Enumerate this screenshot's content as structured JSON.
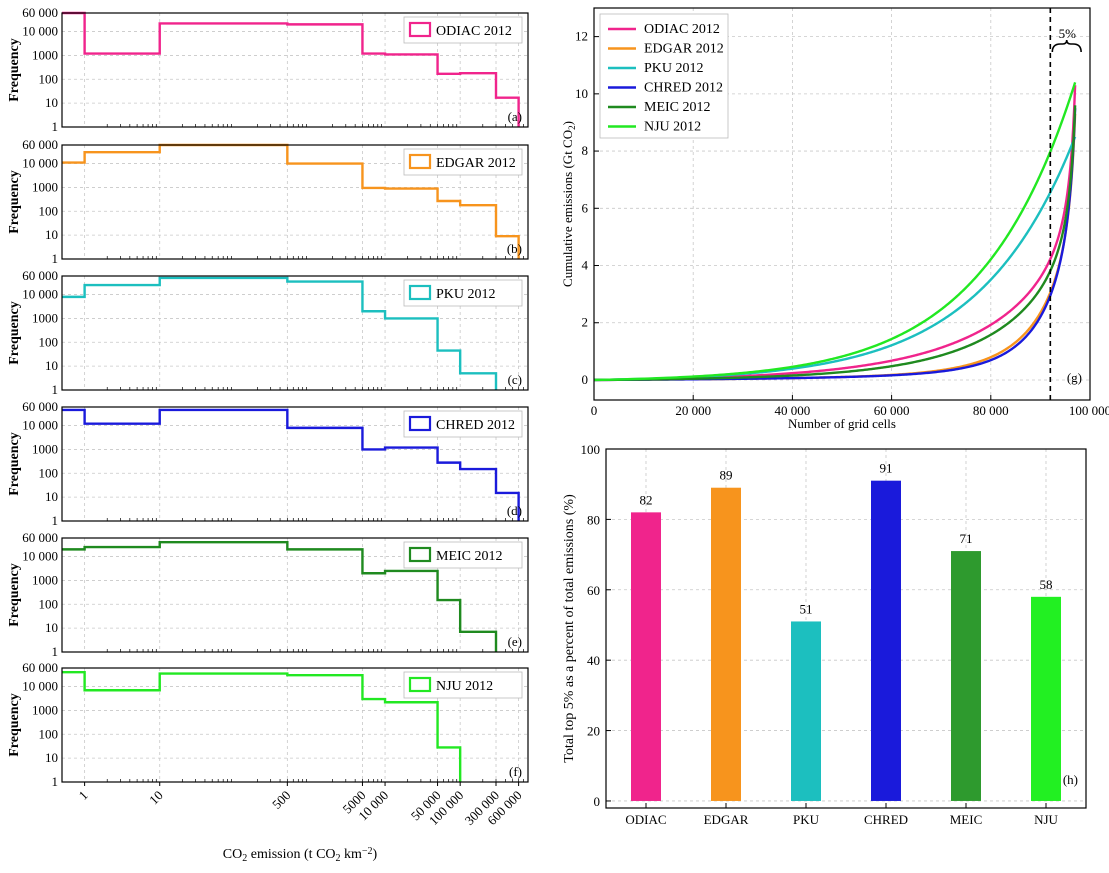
{
  "chart_data": [
    {
      "type": "histogram-step",
      "panels": [
        {
          "id": "a",
          "label": "(a)",
          "series": "ODIAC 2012",
          "color": "#f0248c",
          "edges": [
            0.5,
            1,
            10,
            500,
            5000,
            10000,
            50000,
            100000,
            300000,
            600000
          ],
          "values": [
            60000,
            1200,
            22000,
            20000,
            1200,
            1100,
            170,
            180,
            17
          ]
        },
        {
          "id": "b",
          "label": "(b)",
          "series": "EDGAR 2012",
          "color": "#f7941d",
          "edges": [
            0.5,
            1,
            10,
            500,
            5000,
            10000,
            50000,
            100000,
            300000,
            600000
          ],
          "values": [
            11000,
            30000,
            60000,
            10000,
            950,
            900,
            270,
            180,
            9
          ]
        },
        {
          "id": "c",
          "label": "(c)",
          "series": "PKU 2012",
          "color": "#1cbfbf",
          "edges": [
            0.5,
            1,
            10,
            500,
            5000,
            10000,
            50000,
            100000,
            300000
          ],
          "values": [
            8000,
            25000,
            50000,
            35000,
            2000,
            1000,
            45,
            5
          ]
        },
        {
          "id": "d",
          "label": "(d)",
          "series": "CHRED 2012",
          "color": "#1a1adb",
          "edges": [
            0.5,
            1,
            10,
            500,
            5000,
            10000,
            50000,
            100000,
            300000,
            600000
          ],
          "values": [
            45000,
            12000,
            45000,
            8000,
            1000,
            1200,
            280,
            150,
            15
          ]
        },
        {
          "id": "e",
          "label": "(e)",
          "series": "MEIC 2012",
          "color": "#1f8a1f",
          "edges": [
            0.5,
            1,
            10,
            500,
            5000,
            10000,
            50000,
            100000,
            300000
          ],
          "values": [
            20000,
            25000,
            40000,
            20000,
            2000,
            2500,
            150,
            7
          ]
        },
        {
          "id": "f",
          "label": "(f)",
          "series": "NJU 2012",
          "color": "#22e822",
          "edges": [
            0.5,
            1,
            10,
            500,
            5000,
            10000,
            50000,
            100000
          ],
          "values": [
            40000,
            7000,
            35000,
            30000,
            3000,
            2200,
            28
          ]
        }
      ],
      "x_scale": "log",
      "xlim": [
        0.5,
        800000
      ],
      "y_scale": "log",
      "ylim": [
        1,
        60000
      ],
      "y_ticks": [
        "60 000",
        "10 000",
        "1000",
        "100",
        "10",
        "1"
      ],
      "y_tick_values": [
        60000,
        10000,
        1000,
        100,
        10,
        1
      ],
      "x_ticks": [
        "1",
        "10",
        "500",
        "5000",
        "10 000",
        "50 000",
        "100 000",
        "300 000",
        "600 000"
      ],
      "x_tick_values": [
        1,
        10,
        500,
        5000,
        10000,
        50000,
        100000,
        300000,
        600000
      ],
      "ylabel": "Frequency",
      "xlabel": "emission (t CO km )",
      "xlabel_prefix": "CO",
      "xlabel_sub1": "2",
      "xlabel_sub2": "2",
      "xlabel_sup": "−2",
      "legend": "top-right",
      "grid": true
    },
    {
      "type": "line",
      "label": "(g)",
      "xlabel": "Number of grid cells",
      "ylabel": "Cumulative emissions (Gt CO )",
      "ylabel_sub": "2",
      "xlim": [
        0,
        100000
      ],
      "ylim": [
        -0.7,
        13
      ],
      "x_ticks": [
        "0",
        "20 000",
        "40 000",
        "60 000",
        "80 000",
        "100 000"
      ],
      "x_tick_values": [
        0,
        20000,
        40000,
        60000,
        80000,
        100000
      ],
      "y_ticks": [
        "0",
        "2",
        "4",
        "6",
        "8",
        "10",
        "12"
      ],
      "y_tick_values": [
        0,
        2,
        4,
        6,
        8,
        10,
        12
      ],
      "n_total": 97000,
      "threshold_x": 92000,
      "threshold_label": "5%",
      "legend": "top-left",
      "grid": true,
      "series": [
        {
          "name": "ODIAC 2012",
          "color": "#f0248c",
          "total": 10.3,
          "a": 5.0,
          "b": 27
        },
        {
          "name": "EDGAR 2012",
          "color": "#f7941d",
          "total": 9.3,
          "a": 12.0,
          "b": 21
        },
        {
          "name": "PKU 2012",
          "color": "#1cbfbf",
          "total": 8.5,
          "a": 5.0,
          "b": 0
        },
        {
          "name": "CHRED 2012",
          "color": "#1a1adb",
          "total": 9.5,
          "a": 14.0,
          "b": 28
        },
        {
          "name": "MEIC 2012",
          "color": "#1f8a1f",
          "total": 9.6,
          "a": 6.0,
          "b": 4
        },
        {
          "name": "NJU 2012",
          "color": "#22e822",
          "total": 10.4,
          "a": 5.1,
          "b": 0
        }
      ]
    },
    {
      "type": "bar",
      "label": "(h)",
      "categories": [
        "ODIAC",
        "EDGAR",
        "PKU",
        "CHRED",
        "MEIC",
        "NJU"
      ],
      "values": [
        82,
        89,
        51,
        91,
        71,
        58
      ],
      "data_labels": [
        "82",
        "89",
        "51",
        "91",
        "71",
        "58"
      ],
      "colors": [
        "#f0248c",
        "#f7941d",
        "#1cbfbf",
        "#1a1adb",
        "#2e9a2e",
        "#22f022"
      ],
      "ylabel": "Total top 5% as a percent of total emissions (%)",
      "ylim": [
        -2,
        100
      ],
      "y_ticks": [
        "0",
        "20",
        "40",
        "60",
        "80",
        "100"
      ],
      "y_tick_values": [
        0,
        20,
        40,
        60,
        80,
        100
      ],
      "grid": true
    }
  ]
}
